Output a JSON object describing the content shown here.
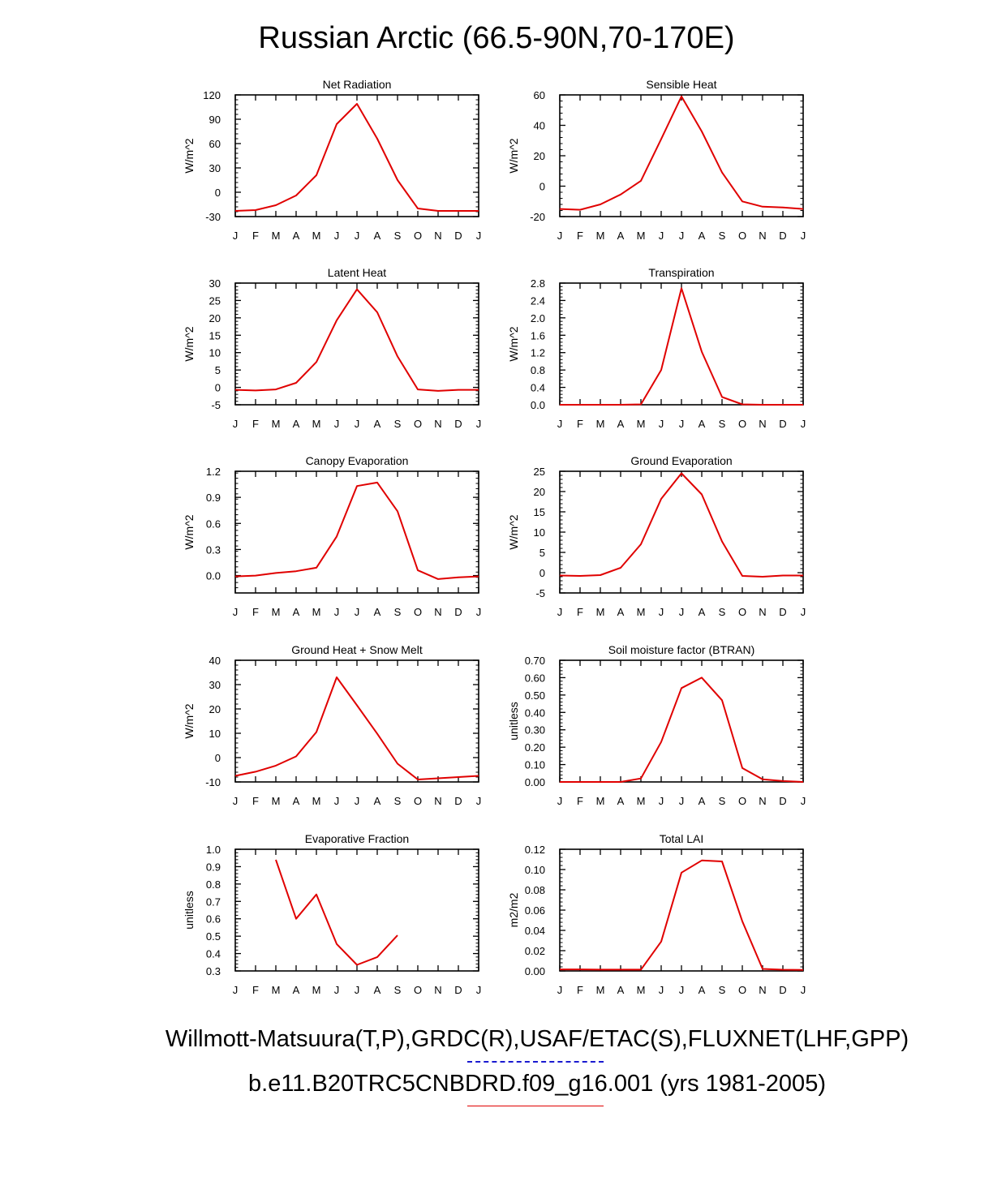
{
  "title": "Russian Arctic (66.5-90N,70-170E)",
  "legend": {
    "observations": "Willmott-Matsuura(T,P),GRDC(R),USAF/ETAC(S),FLUXNET(LHF,GPP)",
    "model": "b.e11.B20TRC5CNBDRD.f09_g16.001 (yrs 1981-2005)",
    "obs_color": "#1a1ad0",
    "model_color": "#e00000"
  },
  "chart_data": [
    {
      "type": "line",
      "title": "Net Radiation",
      "ylabel": "W/m^2",
      "categories": [
        "J",
        "F",
        "M",
        "A",
        "M",
        "J",
        "J",
        "A",
        "S",
        "O",
        "N",
        "D",
        "J"
      ],
      "ylim": [
        -30,
        120
      ],
      "yticks": [
        "-30",
        "0",
        "30",
        "60",
        "90",
        "120"
      ],
      "series": [
        {
          "name": "model",
          "color": "#e00000",
          "values": [
            -23,
            -22,
            -16,
            -4,
            21,
            84,
            109,
            66,
            15,
            -20,
            -23,
            -23,
            -23
          ]
        }
      ]
    },
    {
      "type": "line",
      "title": "Sensible Heat",
      "ylabel": "W/m^2",
      "categories": [
        "J",
        "F",
        "M",
        "A",
        "M",
        "J",
        "J",
        "A",
        "S",
        "O",
        "N",
        "D",
        "J"
      ],
      "ylim": [
        -20,
        60
      ],
      "yticks": [
        "-20",
        "0",
        "20",
        "40",
        "60"
      ],
      "series": [
        {
          "name": "model",
          "color": "#e00000",
          "values": [
            -15,
            -15.5,
            -12,
            -5.5,
            3.5,
            31,
            59,
            36,
            9,
            -10,
            -13.5,
            -14,
            -15
          ]
        }
      ]
    },
    {
      "type": "line",
      "title": "Latent Heat",
      "ylabel": "W/m^2",
      "categories": [
        "J",
        "F",
        "M",
        "A",
        "M",
        "J",
        "J",
        "A",
        "S",
        "O",
        "N",
        "D",
        "J"
      ],
      "ylim": [
        -5,
        30
      ],
      "yticks": [
        "-5",
        "0",
        "5",
        "10",
        "15",
        "20",
        "25",
        "30"
      ],
      "series": [
        {
          "name": "model",
          "color": "#e00000",
          "values": [
            -0.7,
            -0.9,
            -0.6,
            1.3,
            7.3,
            19.3,
            28.2,
            21.6,
            8.9,
            -0.6,
            -1.0,
            -0.7,
            -0.7
          ]
        }
      ]
    },
    {
      "type": "line",
      "title": "Transpiration",
      "ylabel": "W/m^2",
      "categories": [
        "J",
        "F",
        "M",
        "A",
        "M",
        "J",
        "J",
        "A",
        "S",
        "O",
        "N",
        "D",
        "J"
      ],
      "ylim": [
        0,
        2.8
      ],
      "yticks": [
        "0.0",
        "0.4",
        "0.8",
        "1.2",
        "1.6",
        "2.0",
        "2.4",
        "2.8"
      ],
      "series": [
        {
          "name": "model",
          "color": "#e00000",
          "values": [
            0,
            0,
            0,
            0,
            0.01,
            0.8,
            2.68,
            1.22,
            0.18,
            0.01,
            0,
            0,
            0
          ]
        }
      ]
    },
    {
      "type": "line",
      "title": "Canopy Evaporation",
      "ylabel": "W/m^2",
      "categories": [
        "J",
        "F",
        "M",
        "A",
        "M",
        "J",
        "J",
        "A",
        "S",
        "O",
        "N",
        "D",
        "J"
      ],
      "ylim": [
        -0.2,
        1.2
      ],
      "yticks": [
        "0.0",
        "0.3",
        "0.6",
        "0.9",
        "1.2"
      ],
      "series": [
        {
          "name": "model",
          "color": "#e00000",
          "values": [
            -0.01,
            0.0,
            0.03,
            0.05,
            0.09,
            0.45,
            1.03,
            1.07,
            0.74,
            0.06,
            -0.04,
            -0.02,
            -0.01
          ]
        }
      ]
    },
    {
      "type": "line",
      "title": "Ground Evaporation",
      "ylabel": "W/m^2",
      "categories": [
        "J",
        "F",
        "M",
        "A",
        "M",
        "J",
        "J",
        "A",
        "S",
        "O",
        "N",
        "D",
        "J"
      ],
      "ylim": [
        -5,
        25
      ],
      "yticks": [
        "-5",
        "0",
        "5",
        "10",
        "15",
        "20",
        "25"
      ],
      "series": [
        {
          "name": "model",
          "color": "#e00000",
          "values": [
            -0.7,
            -0.8,
            -0.6,
            1.2,
            7.0,
            18.2,
            24.5,
            19.3,
            7.7,
            -0.8,
            -1.0,
            -0.7,
            -0.7
          ]
        }
      ]
    },
    {
      "type": "line",
      "title": "Ground Heat + Snow Melt",
      "ylabel": "W/m^2",
      "categories": [
        "J",
        "F",
        "M",
        "A",
        "M",
        "J",
        "J",
        "A",
        "S",
        "O",
        "N",
        "D",
        "J"
      ],
      "ylim": [
        -10,
        40
      ],
      "yticks": [
        "-10",
        "0",
        "10",
        "20",
        "30",
        "40"
      ],
      "series": [
        {
          "name": "model",
          "color": "#e00000",
          "values": [
            -7.5,
            -5.8,
            -3.3,
            0.5,
            10.5,
            33,
            21.5,
            9.8,
            -2.5,
            -9,
            -8.5,
            -8,
            -7.5
          ]
        }
      ]
    },
    {
      "type": "line",
      "title": "Soil moisture factor (BTRAN)",
      "ylabel": "unitless",
      "categories": [
        "J",
        "F",
        "M",
        "A",
        "M",
        "J",
        "J",
        "A",
        "S",
        "O",
        "N",
        "D",
        "J"
      ],
      "ylim": [
        0,
        0.7
      ],
      "yticks": [
        "0.00",
        "0.10",
        "0.20",
        "0.30",
        "0.40",
        "0.50",
        "0.60",
        "0.70"
      ],
      "series": [
        {
          "name": "model",
          "color": "#e00000",
          "values": [
            0.0,
            0.0,
            0.0,
            0.0,
            0.02,
            0.23,
            0.54,
            0.6,
            0.47,
            0.08,
            0.015,
            0.005,
            0.0
          ]
        }
      ]
    },
    {
      "type": "line",
      "title": "Evaporative Fraction",
      "ylabel": "unitless",
      "categories": [
        "J",
        "F",
        "M",
        "A",
        "M",
        "J",
        "J",
        "A",
        "S",
        "O",
        "N",
        "D",
        "J"
      ],
      "ylim": [
        0.3,
        1.0
      ],
      "yticks": [
        "0.3",
        "0.4",
        "0.5",
        "0.6",
        "0.7",
        "0.8",
        "0.9",
        "1.0"
      ],
      "series": [
        {
          "name": "model",
          "color": "#e00000",
          "values": [
            null,
            null,
            0.94,
            0.6,
            0.74,
            0.455,
            0.335,
            0.38,
            0.505,
            null,
            null,
            null,
            null
          ]
        }
      ]
    },
    {
      "type": "line",
      "title": "Total LAI",
      "ylabel": "m2/m2",
      "categories": [
        "J",
        "F",
        "M",
        "A",
        "M",
        "J",
        "J",
        "A",
        "S",
        "O",
        "N",
        "D",
        "J"
      ],
      "ylim": [
        0,
        0.12
      ],
      "yticks": [
        "0.00",
        "0.02",
        "0.04",
        "0.06",
        "0.08",
        "0.10",
        "0.12"
      ],
      "series": [
        {
          "name": "model",
          "color": "#e00000",
          "values": [
            0.0015,
            0.0015,
            0.0013,
            0.0013,
            0.0013,
            0.029,
            0.097,
            0.109,
            0.108,
            0.049,
            0.002,
            0.0012,
            0.001
          ]
        }
      ]
    }
  ]
}
